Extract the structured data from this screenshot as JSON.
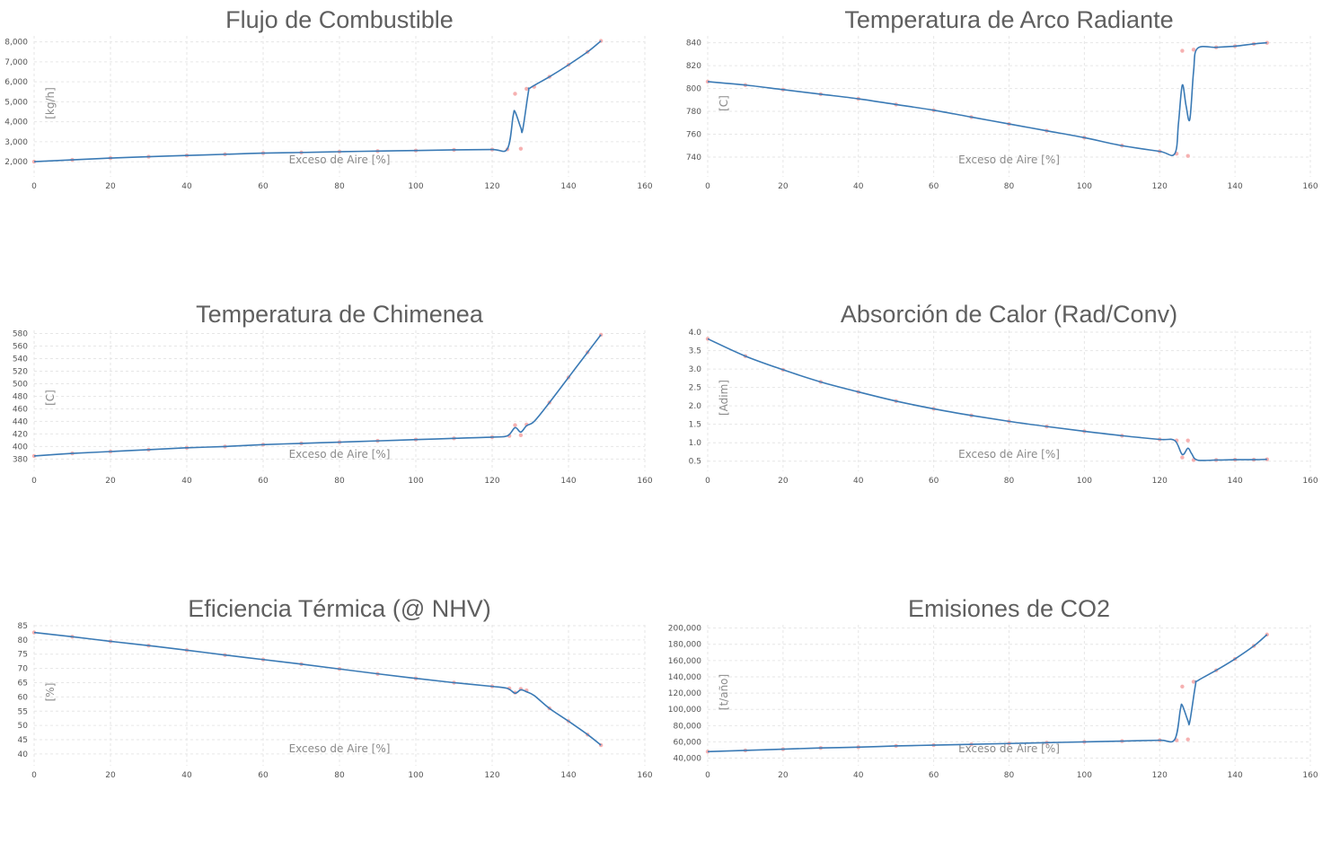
{
  "colors": {
    "line": "#3a7ab5",
    "points": "#f4a3a3",
    "grid": "#e6e6e6",
    "title": "#5f5f5f"
  },
  "chart_data": [
    {
      "type": "line",
      "title": "Flujo de Combustible",
      "xlabel": "Exceso de Aire [%]",
      "ylabel": "[kg/h]",
      "xlim": [
        0,
        160
      ],
      "ylim": [
        1600,
        8300
      ],
      "xticks": [
        0,
        20,
        40,
        60,
        80,
        100,
        120,
        140,
        160
      ],
      "yticks": [
        2000,
        3000,
        4000,
        5000,
        6000,
        7000,
        8000
      ],
      "ytick_labels": [
        "2,000",
        "3,000",
        "4,000",
        "5,000",
        "6,000",
        "7,000",
        "8,000"
      ],
      "grid": true,
      "series": [
        {
          "kind": "line",
          "x": [
            0,
            10,
            20,
            30,
            40,
            50,
            60,
            70,
            80,
            90,
            100,
            110,
            120,
            124,
            125.5,
            126,
            127.5,
            128,
            129.5,
            130,
            135,
            140,
            145,
            148.5
          ],
          "y": [
            2000,
            2090,
            2180,
            2250,
            2310,
            2370,
            2430,
            2460,
            2500,
            2530,
            2560,
            2590,
            2610,
            2650,
            4300,
            4500,
            3700,
            3600,
            5500,
            5700,
            6250,
            6850,
            7500,
            8050
          ]
        },
        {
          "kind": "points",
          "x": [
            0,
            10,
            20,
            30,
            40,
            50,
            60,
            70,
            80,
            90,
            100,
            110,
            120,
            124,
            126,
            127.5,
            129,
            131,
            135,
            140,
            145,
            148.5
          ],
          "y": [
            2000,
            2090,
            2180,
            2250,
            2310,
            2370,
            2430,
            2460,
            2500,
            2530,
            2560,
            2590,
            2610,
            2620,
            5400,
            2650,
            5650,
            5750,
            6250,
            6850,
            7500,
            8050
          ]
        }
      ]
    },
    {
      "type": "line",
      "title": "Temperatura de Arco Radiante",
      "xlabel": "Exceso de Aire [%]",
      "ylabel": "[C]",
      "xlim": [
        0,
        160
      ],
      "ylim": [
        729,
        846
      ],
      "xticks": [
        0,
        20,
        40,
        60,
        80,
        100,
        120,
        140,
        160
      ],
      "yticks": [
        740,
        760,
        780,
        800,
        820,
        840
      ],
      "ytick_labels": [
        "740",
        "760",
        "780",
        "800",
        "820",
        "840"
      ],
      "grid": true,
      "series": [
        {
          "kind": "line",
          "x": [
            0,
            10,
            20,
            30,
            40,
            50,
            60,
            70,
            80,
            90,
            100,
            110,
            120,
            124,
            125,
            126,
            127,
            128,
            129,
            130,
            135,
            140,
            145,
            148.5
          ],
          "y": [
            806,
            803,
            799,
            795,
            791,
            786,
            781,
            775,
            769,
            763,
            757,
            750,
            745,
            743,
            770,
            803,
            785,
            773,
            815,
            835,
            836,
            837,
            839,
            840
          ]
        },
        {
          "kind": "points",
          "x": [
            0,
            10,
            20,
            30,
            40,
            50,
            60,
            70,
            80,
            90,
            100,
            110,
            120,
            124.5,
            126,
            127.5,
            129,
            135,
            140,
            145,
            148.5
          ],
          "y": [
            806,
            803,
            799,
            795,
            791,
            786,
            781,
            775,
            769,
            763,
            757,
            750,
            745,
            743,
            833,
            741,
            834,
            836,
            837,
            839,
            840
          ]
        }
      ]
    },
    {
      "type": "line",
      "title": "Temperatura de Chimenea",
      "xlabel": "Exceso de Aire [%]",
      "ylabel": "[C]",
      "xlim": [
        0,
        160
      ],
      "ylim": [
        372,
        585
      ],
      "xticks": [
        0,
        20,
        40,
        60,
        80,
        100,
        120,
        140,
        160
      ],
      "yticks": [
        380,
        400,
        420,
        440,
        460,
        480,
        500,
        520,
        540,
        560,
        580
      ],
      "ytick_labels": [
        "380",
        "400",
        "420",
        "440",
        "460",
        "480",
        "500",
        "520",
        "540",
        "560",
        "580"
      ],
      "grid": true,
      "series": [
        {
          "kind": "line",
          "x": [
            0,
            10,
            20,
            30,
            40,
            50,
            60,
            70,
            80,
            90,
            100,
            110,
            120,
            124,
            126,
            127.5,
            129,
            131,
            135,
            140,
            145,
            148.5
          ],
          "y": [
            385,
            389,
            392,
            395,
            398,
            400,
            403,
            405,
            407,
            409,
            411,
            413,
            415,
            417,
            430,
            423,
            433,
            440,
            470,
            510,
            550,
            578
          ]
        },
        {
          "kind": "points",
          "x": [
            0,
            10,
            20,
            30,
            40,
            50,
            60,
            70,
            80,
            90,
            100,
            110,
            120,
            124.5,
            126,
            127.5,
            129,
            135,
            140,
            145,
            148.5
          ],
          "y": [
            385,
            389,
            392,
            395,
            398,
            400,
            403,
            405,
            407,
            409,
            411,
            413,
            415,
            417,
            434,
            418,
            435,
            470,
            510,
            550,
            578
          ]
        }
      ]
    },
    {
      "type": "line",
      "title": "Absorción de Calor (Rad/Conv)",
      "xlabel": "Exceso de Aire [%]",
      "ylabel": "[Adim]",
      "xlim": [
        0,
        160
      ],
      "ylim": [
        0.42,
        4.05
      ],
      "xticks": [
        0,
        20,
        40,
        60,
        80,
        100,
        120,
        140,
        160
      ],
      "yticks": [
        0.5,
        1.0,
        1.5,
        2.0,
        2.5,
        3.0,
        3.5,
        4.0
      ],
      "ytick_labels": [
        "0.5",
        "1.0",
        "1.5",
        "2.0",
        "2.5",
        "3.0",
        "3.5",
        "4.0"
      ],
      "grid": true,
      "series": [
        {
          "kind": "line",
          "x": [
            0,
            10,
            20,
            30,
            40,
            50,
            60,
            70,
            80,
            90,
            100,
            110,
            120,
            124,
            126,
            127.5,
            128.5,
            130,
            135,
            140,
            145,
            148.5
          ],
          "y": [
            3.82,
            3.35,
            2.98,
            2.65,
            2.38,
            2.13,
            1.92,
            1.74,
            1.58,
            1.44,
            1.31,
            1.19,
            1.09,
            1.06,
            0.68,
            0.85,
            0.7,
            0.53,
            0.53,
            0.54,
            0.54,
            0.55
          ]
        },
        {
          "kind": "points",
          "x": [
            0,
            10,
            20,
            30,
            40,
            50,
            60,
            70,
            80,
            90,
            100,
            110,
            120,
            124.5,
            126,
            127.5,
            129,
            135,
            140,
            145,
            148.5
          ],
          "y": [
            3.82,
            3.35,
            2.98,
            2.65,
            2.38,
            2.13,
            1.92,
            1.74,
            1.58,
            1.44,
            1.31,
            1.19,
            1.09,
            1.06,
            0.6,
            1.06,
            0.53,
            0.53,
            0.54,
            0.54,
            0.55
          ]
        }
      ]
    },
    {
      "type": "line",
      "title": "Eficiencia Térmica (@ NHV)",
      "xlabel": "Exceso de Aire [%]",
      "ylabel": "[%]",
      "xlim": [
        0,
        160
      ],
      "ylim": [
        38.4,
        85.3
      ],
      "xticks": [
        0,
        20,
        40,
        60,
        80,
        100,
        120,
        140,
        160
      ],
      "yticks": [
        40,
        45,
        50,
        55,
        60,
        65,
        70,
        75,
        80,
        85
      ],
      "ytick_labels": [
        "40",
        "45",
        "50",
        "55",
        "60",
        "65",
        "70",
        "75",
        "80",
        "85"
      ],
      "grid": true,
      "series": [
        {
          "kind": "line",
          "x": [
            0,
            10,
            20,
            30,
            40,
            50,
            60,
            70,
            80,
            90,
            100,
            110,
            120,
            124,
            126,
            127.5,
            129,
            131,
            135,
            140,
            145,
            148.5
          ],
          "y": [
            82.6,
            81.1,
            79.5,
            78.0,
            76.4,
            74.7,
            73.1,
            71.5,
            69.8,
            68.1,
            66.5,
            65.0,
            63.7,
            63.0,
            61.3,
            62.5,
            61.8,
            60.5,
            56.0,
            51.5,
            46.8,
            43.1
          ]
        },
        {
          "kind": "points",
          "x": [
            0,
            10,
            20,
            30,
            40,
            50,
            60,
            70,
            80,
            90,
            100,
            110,
            120,
            124.5,
            126,
            127.5,
            129,
            135,
            140,
            145,
            148.5
          ],
          "y": [
            82.6,
            81.1,
            79.5,
            78.0,
            76.4,
            74.7,
            73.1,
            71.5,
            69.8,
            68.1,
            66.5,
            65.0,
            63.7,
            63.0,
            61.5,
            62.8,
            62.3,
            56.0,
            51.5,
            46.8,
            43.1
          ]
        }
      ]
    },
    {
      "type": "line",
      "title": "Emisiones de CO2",
      "xlabel": "Exceso de Aire [%]",
      "ylabel": "[t/año]",
      "xlim": [
        0,
        160
      ],
      "ylim": [
        39500,
        204000
      ],
      "xticks": [
        0,
        20,
        40,
        60,
        80,
        100,
        120,
        140,
        160
      ],
      "yticks": [
        40000,
        60000,
        80000,
        100000,
        120000,
        140000,
        160000,
        180000,
        200000
      ],
      "ytick_labels": [
        "40,000",
        "60,000",
        "80,000",
        "100,000",
        "120,000",
        "140,000",
        "160,000",
        "180,000",
        "200,000"
      ],
      "grid": true,
      "series": [
        {
          "kind": "line",
          "x": [
            0,
            10,
            20,
            30,
            40,
            50,
            60,
            70,
            80,
            90,
            100,
            110,
            120,
            124,
            125.5,
            126,
            127.5,
            128,
            129.5,
            130,
            135,
            140,
            145,
            148.5
          ],
          "y": [
            48000,
            49500,
            51000,
            52500,
            53500,
            55000,
            56000,
            57000,
            58000,
            59000,
            60000,
            61000,
            62000,
            63000,
            100000,
            105000,
            86000,
            85000,
            130000,
            135000,
            148000,
            162000,
            178000,
            192000
          ]
        },
        {
          "kind": "points",
          "x": [
            0,
            10,
            20,
            30,
            40,
            50,
            60,
            70,
            80,
            90,
            100,
            110,
            120,
            124.5,
            126,
            127.5,
            129,
            135,
            140,
            145,
            148.5
          ],
          "y": [
            48000,
            49500,
            51000,
            52500,
            53500,
            55000,
            56000,
            57000,
            58000,
            59000,
            60000,
            61000,
            62000,
            62000,
            128000,
            63000,
            134000,
            148000,
            162000,
            178000,
            192000
          ]
        }
      ]
    }
  ]
}
